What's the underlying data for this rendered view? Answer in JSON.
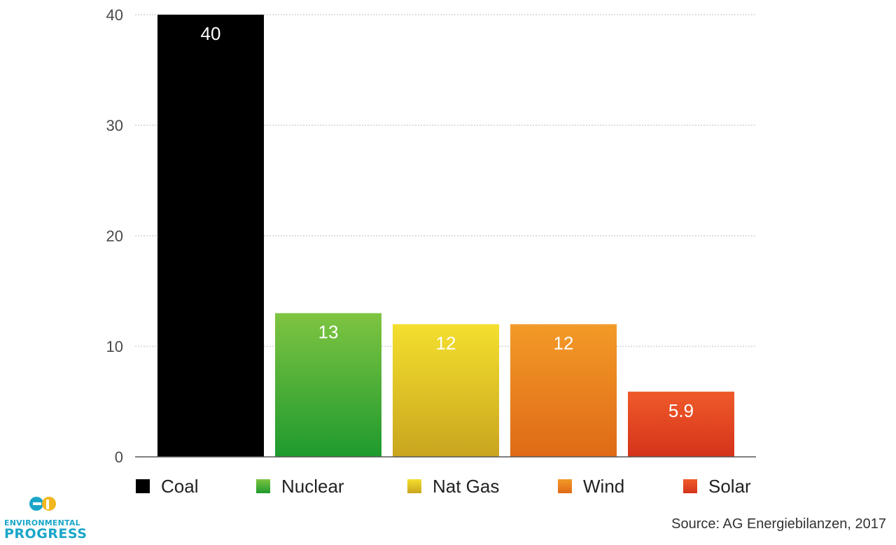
{
  "chart_data": {
    "type": "bar",
    "categories": [
      "Coal",
      "Nuclear",
      "Nat Gas",
      "Wind",
      "Solar"
    ],
    "values": [
      40,
      13,
      12,
      12,
      5.9
    ],
    "data_labels": [
      "40",
      "13",
      "12",
      "12",
      "5.9"
    ],
    "colors": [
      {
        "top": "#000000",
        "bottom": "#000000"
      },
      {
        "top": "#7fc441",
        "bottom": "#1e9a2e"
      },
      {
        "top": "#f4df2e",
        "bottom": "#c9a51f"
      },
      {
        "top": "#f39a28",
        "bottom": "#df6a16"
      },
      {
        "top": "#ef5a2a",
        "bottom": "#d4331a"
      }
    ],
    "yticks": [
      0,
      10,
      20,
      30,
      40
    ],
    "ylim": [
      0,
      40
    ],
    "grid": true,
    "legend_position": "bottom",
    "title": "",
    "xlabel": "",
    "ylabel": ""
  },
  "source": "Source: AG Energiebilanzen, 2017",
  "logo": {
    "line1": "ENVIRONMENTAL",
    "line2": "PROGRESS",
    "color": "#1aa6c8"
  }
}
